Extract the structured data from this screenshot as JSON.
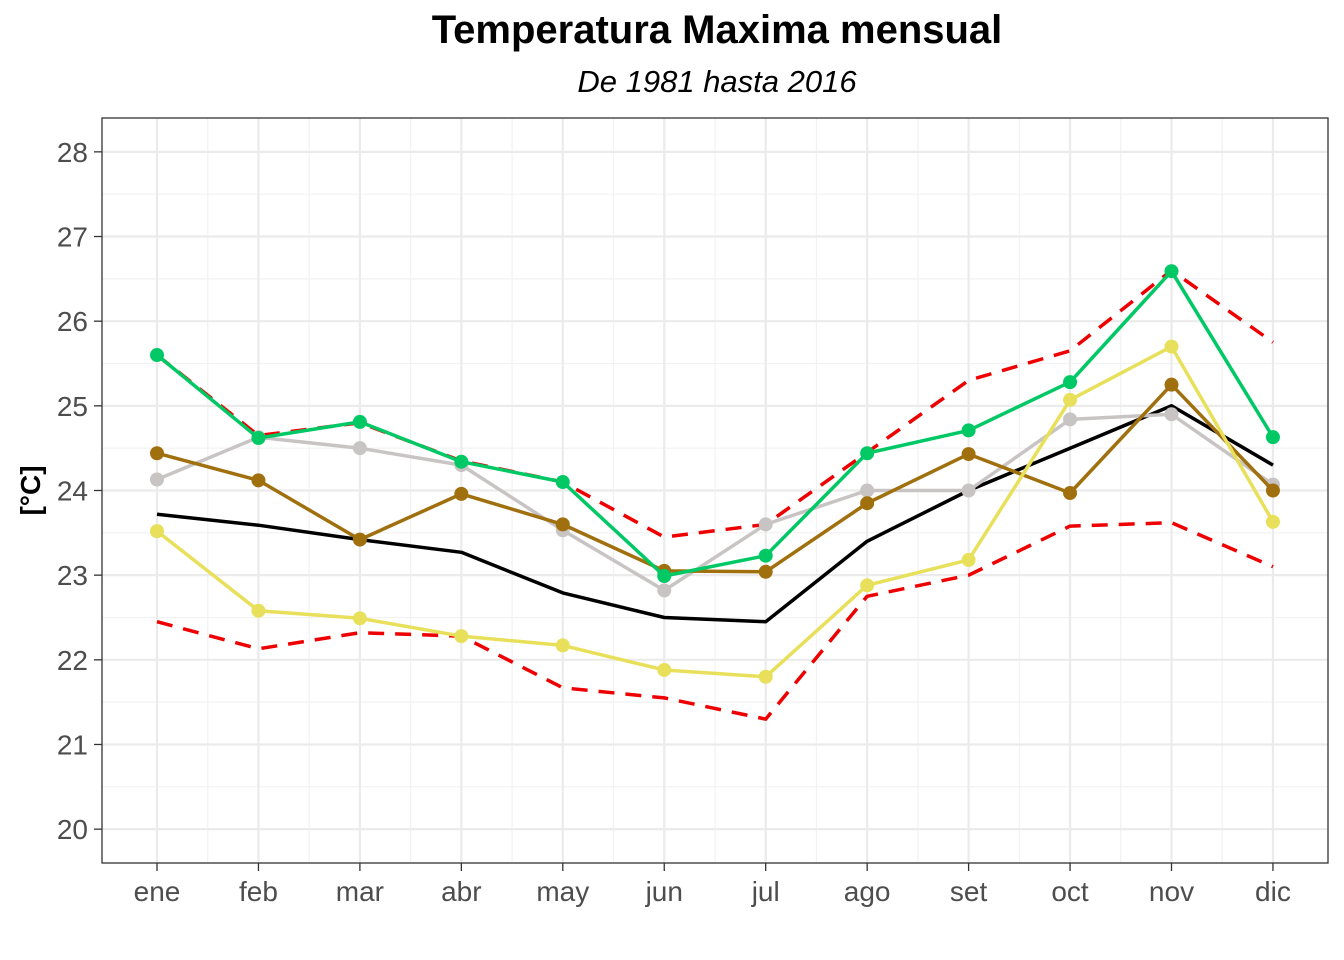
{
  "chart_data": {
    "type": "line",
    "title": "Temperatura Maxima mensual",
    "subtitle": "De 1981 hasta 2016",
    "xlabel": "",
    "ylabel": "[°C]",
    "categories": [
      "ene",
      "feb",
      "mar",
      "abr",
      "may",
      "jun",
      "jul",
      "ago",
      "set",
      "oct",
      "nov",
      "dic"
    ],
    "ylim": [
      19.6,
      28.4
    ],
    "yticks": [
      "20",
      "21",
      "22",
      "23",
      "24",
      "25",
      "26",
      "27",
      "28"
    ],
    "grid": true,
    "legend": "none",
    "series": [
      {
        "color": "#ee0000",
        "dashed": true,
        "markers": false,
        "values": [
          25.6,
          24.65,
          24.8,
          24.35,
          24.1,
          23.45,
          23.6,
          24.45,
          25.3,
          25.65,
          26.6,
          25.75
        ]
      },
      {
        "color": "#ee0000",
        "dashed": true,
        "markers": false,
        "values": [
          22.45,
          22.13,
          22.32,
          22.28,
          21.67,
          21.55,
          21.3,
          22.75,
          23.0,
          23.58,
          23.62,
          23.1
        ]
      },
      {
        "color": "#000000",
        "dashed": false,
        "markers": false,
        "values": [
          23.72,
          23.59,
          23.42,
          23.27,
          22.79,
          22.5,
          22.45,
          23.4,
          24.0,
          24.5,
          25.0,
          24.3
        ]
      },
      {
        "color": "#c8c4c4",
        "dashed": false,
        "markers": true,
        "values": [
          24.13,
          24.63,
          24.5,
          24.3,
          23.53,
          22.82,
          23.6,
          24.0,
          24.0,
          24.84,
          24.9,
          24.07
        ]
      },
      {
        "color": "#a0700e",
        "dashed": false,
        "markers": true,
        "values": [
          24.44,
          24.12,
          23.42,
          23.96,
          23.6,
          23.05,
          23.04,
          23.85,
          24.43,
          23.97,
          25.25,
          24.0
        ]
      },
      {
        "color": "#e8e05a",
        "dashed": false,
        "markers": true,
        "values": [
          23.52,
          22.58,
          22.49,
          22.28,
          22.17,
          21.88,
          21.8,
          22.88,
          23.18,
          25.07,
          25.7,
          23.63
        ]
      },
      {
        "color": "#00c865",
        "dashed": false,
        "markers": true,
        "values": [
          25.6,
          24.62,
          24.81,
          24.34,
          24.1,
          22.99,
          23.23,
          24.44,
          24.71,
          25.28,
          26.59,
          24.63
        ]
      }
    ]
  }
}
